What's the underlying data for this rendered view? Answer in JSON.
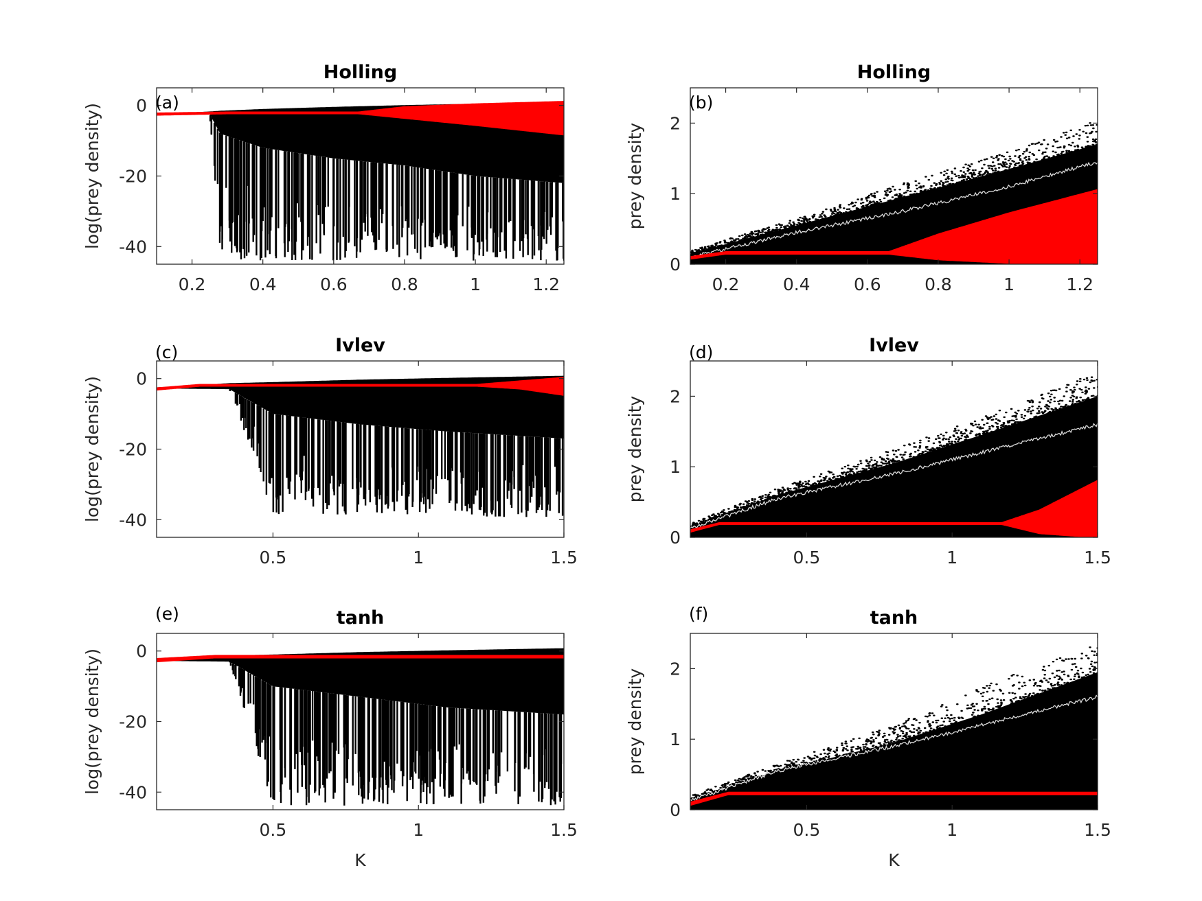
{
  "colors": {
    "deterministic": "#ff0000",
    "stochastic": "#000000",
    "mean": "#d9d9d9",
    "axes": "#262626"
  },
  "chart_data": [
    {
      "id": "a",
      "panel_label": "(a)",
      "title": "Holling",
      "type": "scatter",
      "xlabel": "",
      "ylabel": "log(prey density)",
      "xlim": [
        0.1,
        1.25
      ],
      "ylim": [
        -45,
        5
      ],
      "xticks": [
        "0.2",
        "0.4",
        "0.6",
        "0.8",
        "1",
        "1.2"
      ],
      "xtick_values": [
        0.2,
        0.4,
        0.6,
        0.8,
        1.0,
        1.2
      ],
      "yticks": [
        "0",
        "-20",
        "-40"
      ],
      "ytick_values": [
        0,
        -20,
        -40
      ],
      "series": [
        {
          "kind": "stochastic",
          "k": [
            0.1,
            0.25,
            0.28,
            0.4,
            0.6,
            0.8,
            1.0,
            1.25
          ],
          "upper": [
            -2.5,
            -1.7,
            -1.5,
            -1.0,
            -0.4,
            0.1,
            0.5,
            0.8
          ],
          "body_lower": [
            -2.8,
            -2.5,
            -8,
            -12,
            -15,
            -17,
            -20,
            -22
          ],
          "spike_floor": [
            -3,
            -3,
            -44,
            -44,
            -44,
            -44,
            -44,
            -44
          ],
          "spike_start": 0.25
        },
        {
          "kind": "deterministic",
          "k": [
            0.1,
            0.3,
            0.67,
            0.8,
            1.0,
            1.25
          ],
          "upper": [
            -2.3,
            -2.0,
            -2.0,
            -0.5,
            0.3,
            1.0
          ],
          "lower": [
            -2.6,
            -2.2,
            -2.2,
            -3.5,
            -5.5,
            -8.2
          ]
        }
      ]
    },
    {
      "id": "b",
      "panel_label": "(b)",
      "title": "Holling",
      "type": "scatter",
      "xlabel": "",
      "ylabel": "prey density",
      "xlim": [
        0.1,
        1.25
      ],
      "ylim": [
        0,
        2.5
      ],
      "xticks": [
        "0.2",
        "0.4",
        "0.6",
        "0.8",
        "1",
        "1.2"
      ],
      "xtick_values": [
        0.2,
        0.4,
        0.6,
        0.8,
        1.0,
        1.2
      ],
      "yticks": [
        "0",
        "1",
        "2"
      ],
      "ytick_values": [
        0,
        1,
        2
      ],
      "series": [
        {
          "kind": "stochastic",
          "k": [
            0.1,
            0.4,
            0.7,
            1.0,
            1.25
          ],
          "upper": [
            0.15,
            0.55,
            0.95,
            1.35,
            1.7
          ],
          "lower": [
            0,
            0,
            0,
            0,
            0
          ],
          "outlier_max": [
            0.2,
            0.65,
            1.15,
            1.6,
            2.05
          ]
        },
        {
          "kind": "mean",
          "k": [
            0.1,
            0.4,
            0.7,
            1.0,
            1.25
          ],
          "values": [
            0.1,
            0.45,
            0.75,
            1.1,
            1.45
          ]
        },
        {
          "kind": "deterministic",
          "k": [
            0.1,
            0.2,
            0.66,
            0.8,
            1.0,
            1.25
          ],
          "upper": [
            0.1,
            0.17,
            0.17,
            0.42,
            0.72,
            1.05
          ],
          "lower": [
            0.08,
            0.15,
            0.15,
            0.07,
            0.02,
            0.0
          ]
        }
      ]
    },
    {
      "id": "c",
      "panel_label": "(c)",
      "title": "Ivlev",
      "type": "scatter",
      "xlabel": "",
      "ylabel": "log(prey density)",
      "xlim": [
        0.1,
        1.5
      ],
      "ylim": [
        -45,
        5
      ],
      "xticks": [
        "0.5",
        "1",
        "1.5"
      ],
      "xtick_values": [
        0.5,
        1.0,
        1.5
      ],
      "yticks": [
        "0",
        "-20",
        "-40"
      ],
      "ytick_values": [
        0,
        -20,
        -40
      ],
      "series": [
        {
          "kind": "stochastic",
          "k": [
            0.1,
            0.35,
            0.5,
            0.8,
            1.1,
            1.5
          ],
          "upper": [
            -2.5,
            -1.3,
            -1.0,
            -0.3,
            0.2,
            0.8
          ],
          "body_lower": [
            -2.8,
            -3.0,
            -10,
            -13,
            -15,
            -17
          ],
          "spike_floor": [
            -3,
            -3,
            -38.5,
            -38.5,
            -39,
            -39.5
          ],
          "spike_start": 0.34
        },
        {
          "kind": "deterministic",
          "k": [
            0.1,
            0.25,
            1.2,
            1.35,
            1.5
          ],
          "upper": [
            -2.8,
            -1.8,
            -1.8,
            -0.8,
            0.2
          ],
          "lower": [
            -3.1,
            -2.0,
            -2.0,
            -2.8,
            -4.6
          ]
        }
      ]
    },
    {
      "id": "d",
      "panel_label": "(d)",
      "title": "Ivlev",
      "type": "scatter",
      "xlabel": "",
      "ylabel": "prey density",
      "xlim": [
        0.1,
        1.5
      ],
      "ylim": [
        0,
        2.5
      ],
      "xticks": [
        "0.5",
        "1",
        "1.5"
      ],
      "xtick_values": [
        0.5,
        1.0,
        1.5
      ],
      "yticks": [
        "0",
        "1",
        "2"
      ],
      "ytick_values": [
        0,
        1,
        2
      ],
      "series": [
        {
          "kind": "stochastic",
          "k": [
            0.1,
            0.4,
            0.8,
            1.1,
            1.5
          ],
          "upper": [
            0.15,
            0.6,
            1.05,
            1.45,
            2.0
          ],
          "lower": [
            0,
            0,
            0,
            0,
            0
          ],
          "outlier_max": [
            0.2,
            0.7,
            1.25,
            1.7,
            2.35
          ]
        },
        {
          "kind": "mean",
          "k": [
            0.1,
            0.4,
            0.8,
            1.1,
            1.5
          ],
          "values": [
            0.12,
            0.55,
            0.9,
            1.2,
            1.6
          ]
        },
        {
          "kind": "deterministic",
          "k": [
            0.1,
            0.2,
            1.17,
            1.3,
            1.5
          ],
          "upper": [
            0.1,
            0.2,
            0.2,
            0.38,
            0.8
          ],
          "lower": [
            0.08,
            0.19,
            0.19,
            0.06,
            0.0
          ]
        }
      ]
    },
    {
      "id": "e",
      "panel_label": "(e)",
      "title": "tanh",
      "type": "scatter",
      "xlabel": "K",
      "ylabel": "log(prey density)",
      "xlim": [
        0.1,
        1.5
      ],
      "ylim": [
        -45,
        5
      ],
      "xticks": [
        "0.5",
        "1",
        "1.5"
      ],
      "xtick_values": [
        0.5,
        1.0,
        1.5
      ],
      "yticks": [
        "0",
        "-20",
        "-40"
      ],
      "ytick_values": [
        0,
        -20,
        -40
      ],
      "series": [
        {
          "kind": "stochastic",
          "k": [
            0.1,
            0.35,
            0.5,
            0.8,
            1.1,
            1.5
          ],
          "upper": [
            -2.5,
            -1.3,
            -1.0,
            -0.3,
            0.2,
            0.8
          ],
          "body_lower": [
            -2.8,
            -3.0,
            -10,
            -13,
            -16,
            -18
          ],
          "spike_floor": [
            -3,
            -3,
            -44,
            -44,
            -44,
            -44
          ],
          "spike_start": 0.35
        },
        {
          "kind": "deterministic",
          "k": [
            0.1,
            0.3,
            1.5
          ],
          "upper": [
            -2.3,
            -1.4,
            -1.4
          ],
          "lower": [
            -2.9,
            -1.8,
            -1.8
          ]
        }
      ]
    },
    {
      "id": "f",
      "panel_label": "(f)",
      "title": "tanh",
      "type": "scatter",
      "xlabel": "K",
      "ylabel": "prey density",
      "xlim": [
        0.1,
        1.5
      ],
      "ylim": [
        0,
        2.5
      ],
      "xticks": [
        "0.5",
        "1",
        "1.5"
      ],
      "xtick_values": [
        0.5,
        1.0,
        1.5
      ],
      "yticks": [
        "0",
        "1",
        "2"
      ],
      "ytick_values": [
        0,
        1,
        2
      ],
      "series": [
        {
          "kind": "stochastic",
          "k": [
            0.1,
            0.4,
            0.8,
            1.1,
            1.5
          ],
          "upper": [
            0.15,
            0.55,
            0.95,
            1.35,
            1.95
          ],
          "lower": [
            0,
            0,
            0,
            0,
            0
          ],
          "outlier_max": [
            0.2,
            0.65,
            1.2,
            1.75,
            2.35
          ]
        },
        {
          "kind": "mean",
          "k": [
            0.1,
            0.4,
            0.8,
            1.1,
            1.5
          ],
          "values": [
            0.13,
            0.55,
            0.9,
            1.2,
            1.6
          ]
        },
        {
          "kind": "deterministic",
          "k": [
            0.1,
            0.23,
            1.5
          ],
          "upper": [
            0.1,
            0.24,
            0.24
          ],
          "lower": [
            0.07,
            0.22,
            0.22
          ]
        }
      ]
    }
  ]
}
